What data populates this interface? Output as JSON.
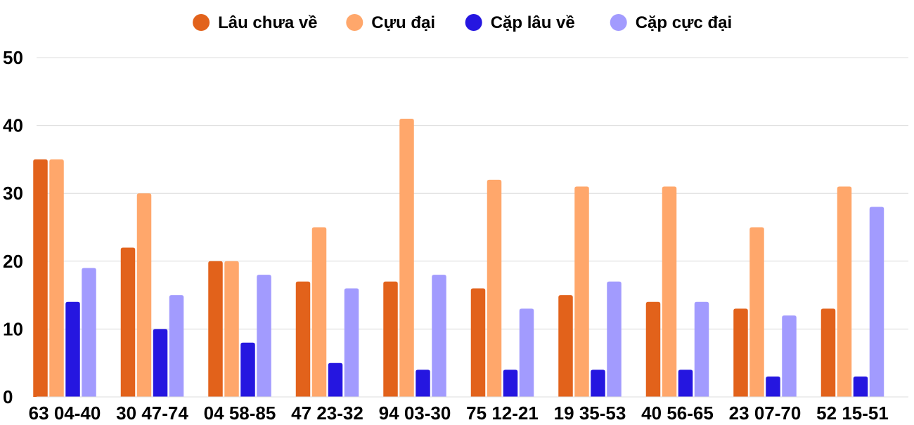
{
  "chart_data": {
    "type": "bar",
    "title": "",
    "xlabel": "",
    "ylabel": "",
    "categories": [
      "63 04-40",
      "30 47-74",
      "04 58-85",
      "47 23-32",
      "94 03-30",
      "75 12-21",
      "19 35-53",
      "40 56-65",
      "23 07-70",
      "52 15-51"
    ],
    "series": [
      {
        "name": "Lâu chưa về",
        "color": "#e2621b",
        "values": [
          35,
          22,
          20,
          17,
          17,
          16,
          15,
          14,
          13,
          13
        ]
      },
      {
        "name": "Cựu đại",
        "color": "#ffa76b",
        "values": [
          35,
          30,
          20,
          25,
          41,
          32,
          31,
          31,
          25,
          31
        ]
      },
      {
        "name": "Cặp lâu về",
        "color": "#2516e0",
        "values": [
          14,
          10,
          8,
          5,
          4,
          4,
          4,
          4,
          3,
          3
        ]
      },
      {
        "name": "Cặp cực đại",
        "color": "#a29bfe",
        "values": [
          19,
          15,
          18,
          16,
          18,
          13,
          17,
          14,
          12,
          28
        ]
      }
    ],
    "ylim": [
      0,
      50
    ],
    "yticks": [
      0,
      10,
      20,
      30,
      40,
      50
    ],
    "grid": true,
    "legend_position": "top-center"
  }
}
